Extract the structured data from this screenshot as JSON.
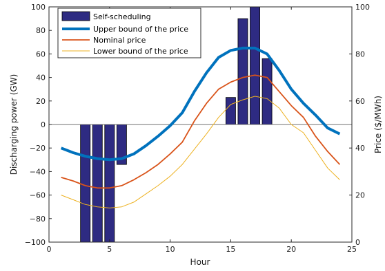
{
  "chart_data": {
    "type": "bar+line",
    "xlabel": "Hour",
    "ylabel_left": "Discharging power (GW)",
    "ylabel_right": "Price ($/MWh)",
    "xlim": [
      0,
      25
    ],
    "ylim_left": [
      -100,
      100
    ],
    "ylim_right": [
      0,
      100
    ],
    "x_ticks": [
      0,
      5,
      10,
      15,
      20,
      25
    ],
    "y_ticks_left": [
      -100,
      -80,
      -60,
      -40,
      -20,
      0,
      20,
      40,
      60,
      80,
      100
    ],
    "y_ticks_right": [
      0,
      20,
      40,
      60,
      80,
      100
    ],
    "grid": false,
    "legend_position": "top-left",
    "bars": {
      "name": "Self-scheduling",
      "axis": "left",
      "color": "#2e2b82",
      "x": [
        3,
        4,
        5,
        6,
        15,
        16,
        17,
        18
      ],
      "values": [
        -100,
        -100,
        -100,
        -34,
        23,
        90,
        100,
        56
      ]
    },
    "series": [
      {
        "name": "Upper bound of the price",
        "axis": "right",
        "color": "#0072bd",
        "x": [
          1,
          2,
          3,
          4,
          5,
          6,
          7,
          8,
          9,
          10,
          11,
          12,
          13,
          14,
          15,
          16,
          17,
          18,
          19,
          20,
          21,
          22,
          23,
          24
        ],
        "values": [
          40,
          38,
          36.5,
          35.5,
          35,
          35.5,
          37.5,
          41,
          45,
          49.5,
          55,
          64,
          72,
          78.5,
          81.5,
          82.5,
          82.5,
          80,
          73,
          65,
          59,
          54,
          48.5,
          46
        ]
      },
      {
        "name": "Nominal price",
        "axis": "right",
        "color": "#d95319",
        "x": [
          1,
          2,
          3,
          4,
          5,
          6,
          7,
          8,
          9,
          10,
          11,
          12,
          13,
          14,
          15,
          16,
          17,
          18,
          19,
          20,
          21,
          22,
          23,
          24
        ],
        "values": [
          27.5,
          26,
          24,
          23,
          23,
          24,
          26.5,
          29.5,
          33,
          37.5,
          42.5,
          51.5,
          59,
          65,
          68,
          70,
          71,
          70,
          64,
          58,
          53,
          45,
          38.5,
          33
        ]
      },
      {
        "name": "Lower bound of the price",
        "axis": "right",
        "color": "#edb120",
        "x": [
          1,
          2,
          3,
          4,
          5,
          6,
          7,
          8,
          9,
          10,
          11,
          12,
          13,
          14,
          15,
          16,
          17,
          18,
          19,
          20,
          21,
          22,
          23,
          24
        ],
        "values": [
          20,
          18,
          16,
          15,
          14.5,
          15,
          17,
          20.5,
          24,
          28,
          33,
          39.5,
          46,
          53,
          58.5,
          60.5,
          62,
          61,
          57,
          50,
          46.5,
          39,
          31.5,
          26.5
        ]
      }
    ]
  }
}
